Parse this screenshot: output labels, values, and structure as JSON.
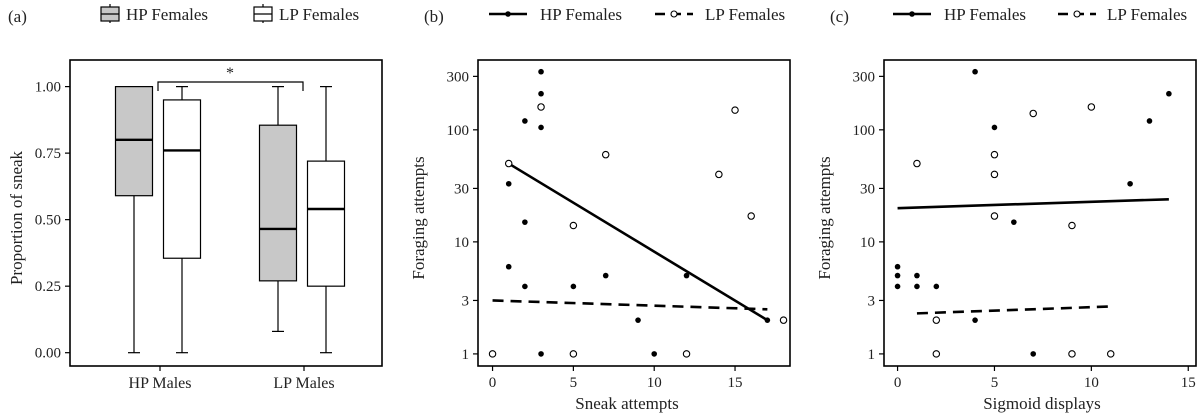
{
  "chart_data": [
    {
      "type": "box",
      "panel_label": "(a)",
      "legend": [
        {
          "name": "HP Females",
          "fill": "#c8c8c8"
        },
        {
          "name": "LP Females",
          "fill": "#ffffff"
        }
      ],
      "categories": [
        "HP Males",
        "LP Males"
      ],
      "ylabel": "Proportion of sneak",
      "xlabel": "",
      "ylim": [
        -0.05,
        1.1
      ],
      "yticks": [
        0.0,
        0.25,
        0.5,
        0.75,
        1.0
      ],
      "ytick_labels": [
        "0.00",
        "0.25",
        "0.50",
        "0.75",
        "1.00"
      ],
      "boxes": [
        {
          "category": "HP Males",
          "series": "HP Females",
          "min": 0.0,
          "q1": 0.59,
          "median": 0.8,
          "q3": 1.0,
          "max": 1.0
        },
        {
          "category": "HP Males",
          "series": "LP Females",
          "min": 0.0,
          "q1": 0.355,
          "median": 0.76,
          "q3": 0.95,
          "max": 1.0
        },
        {
          "category": "LP Males",
          "series": "HP Females",
          "min": 0.08,
          "q1": 0.27,
          "median": 0.465,
          "q3": 0.855,
          "max": 1.0
        },
        {
          "category": "LP Males",
          "series": "LP Females",
          "min": 0.0,
          "q1": 0.25,
          "median": 0.54,
          "q3": 0.72,
          "max": 1.0
        }
      ],
      "annotation": "*"
    },
    {
      "type": "scatter",
      "panel_label": "(b)",
      "legend": [
        {
          "name": "HP Females",
          "marker": "filled",
          "line": "solid"
        },
        {
          "name": "LP Females",
          "marker": "open",
          "line": "dashed"
        }
      ],
      "xlabel": "Sneak attempts",
      "ylabel": "Foraging attempts",
      "y_scale": "log",
      "xlim": [
        -0.9,
        18.4
      ],
      "ylim": [
        0.78,
        420
      ],
      "xticks": [
        0,
        5,
        10,
        15
      ],
      "yticks": [
        1,
        3,
        10,
        30,
        100,
        300
      ],
      "series": [
        {
          "name": "HP Females",
          "points": [
            [
              1,
              6
            ],
            [
              1,
              33
            ],
            [
              2,
              15
            ],
            [
              2,
              4
            ],
            [
              2,
              120
            ],
            [
              3,
              1
            ],
            [
              3,
              105
            ],
            [
              3,
              210
            ],
            [
              3,
              330
            ],
            [
              5,
              4
            ],
            [
              7,
              5
            ],
            [
              9,
              2
            ],
            [
              10,
              1
            ],
            [
              12,
              5
            ],
            [
              17,
              2
            ]
          ],
          "fit": [
            [
              1,
              50
            ],
            [
              17,
              2
            ]
          ]
        },
        {
          "name": "LP Females",
          "points": [
            [
              0,
              1
            ],
            [
              1,
              50
            ],
            [
              3,
              160
            ],
            [
              5,
              1
            ],
            [
              5,
              14
            ],
            [
              7,
              60
            ],
            [
              12,
              1
            ],
            [
              14,
              40
            ],
            [
              15,
              150
            ],
            [
              16,
              17
            ],
            [
              18,
              2
            ]
          ],
          "fit": [
            [
              0,
              3
            ],
            [
              17,
              2.5
            ]
          ]
        }
      ]
    },
    {
      "type": "scatter",
      "panel_label": "(c)",
      "legend": [
        {
          "name": "HP Females",
          "marker": "filled",
          "line": "solid"
        },
        {
          "name": "LP Females",
          "marker": "open",
          "line": "dashed"
        }
      ],
      "xlabel": "Sigmoid displays",
      "ylabel": "Foraging attempts",
      "y_scale": "log",
      "xlim": [
        -0.7,
        15.4
      ],
      "ylim": [
        0.78,
        420
      ],
      "xticks": [
        0,
        5,
        10,
        15
      ],
      "yticks": [
        1,
        3,
        10,
        30,
        100,
        300
      ],
      "series": [
        {
          "name": "HP Females",
          "points": [
            [
              0,
              4
            ],
            [
              0,
              5
            ],
            [
              0,
              6
            ],
            [
              1,
              4
            ],
            [
              1,
              5
            ],
            [
              2,
              4
            ],
            [
              4,
              2
            ],
            [
              4,
              330
            ],
            [
              5,
              105
            ],
            [
              6,
              15
            ],
            [
              7,
              1
            ],
            [
              12,
              33
            ],
            [
              13,
              120
            ],
            [
              14,
              210
            ]
          ],
          "fit": [
            [
              0,
              20
            ],
            [
              14,
              24
            ]
          ]
        },
        {
          "name": "LP Females",
          "points": [
            [
              1,
              50
            ],
            [
              2,
              1
            ],
            [
              2,
              2
            ],
            [
              5,
              17
            ],
            [
              5,
              40
            ],
            [
              5,
              60
            ],
            [
              7,
              140
            ],
            [
              9,
              1
            ],
            [
              9,
              14
            ],
            [
              10,
              160
            ],
            [
              11,
              1
            ]
          ],
          "fit": [
            [
              1,
              2.3
            ],
            [
              11,
              2.65
            ]
          ]
        }
      ]
    }
  ]
}
